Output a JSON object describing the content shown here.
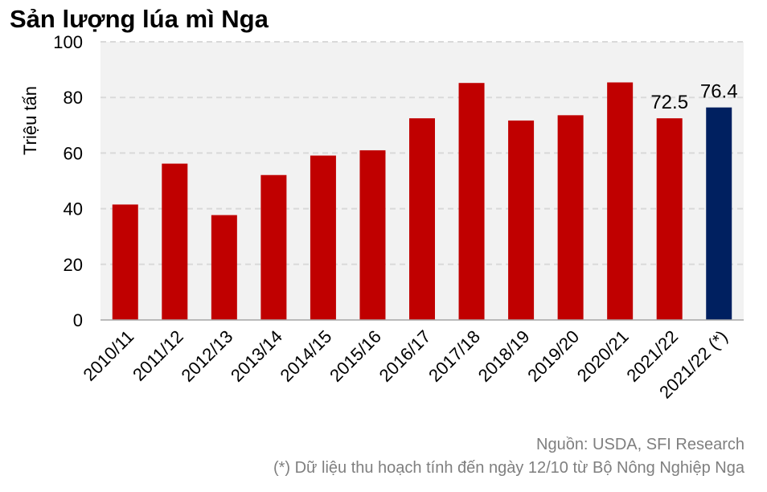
{
  "title": "Sản lượng lúa mì Nga",
  "source": "Nguồn: USDA, SFI Research",
  "note": "(*) Dữ liệu thu hoạch tính đến ngày 12/10 từ Bộ Nông Nghiệp Nga",
  "colors": {
    "bar": "#c00000",
    "highlight": "#002060",
    "plot_bg": "#f2f2f2",
    "grid": "#d9d9d9"
  },
  "chart_data": {
    "type": "bar",
    "title": "Sản lượng lúa mì Nga",
    "xlabel": "",
    "ylabel": "Triệu tấn",
    "ylim": [
      0,
      100
    ],
    "yticks": [
      0,
      20,
      40,
      60,
      80,
      100
    ],
    "grid": true,
    "categories": [
      "2010/11",
      "2011/12",
      "2012/13",
      "2013/14",
      "2014/15",
      "2015/16",
      "2016/17",
      "2017/18",
      "2018/19",
      "2019/20",
      "2020/21",
      "2021/22",
      "2021/22 (*)"
    ],
    "values": [
      41.5,
      56.2,
      37.7,
      52.1,
      59.1,
      61.0,
      72.5,
      85.2,
      71.7,
      73.6,
      85.4,
      72.5,
      76.4
    ],
    "highlight_index": 12,
    "data_labels": [
      {
        "index": 11,
        "text": "72.5"
      },
      {
        "index": 12,
        "text": "76.4"
      }
    ]
  }
}
